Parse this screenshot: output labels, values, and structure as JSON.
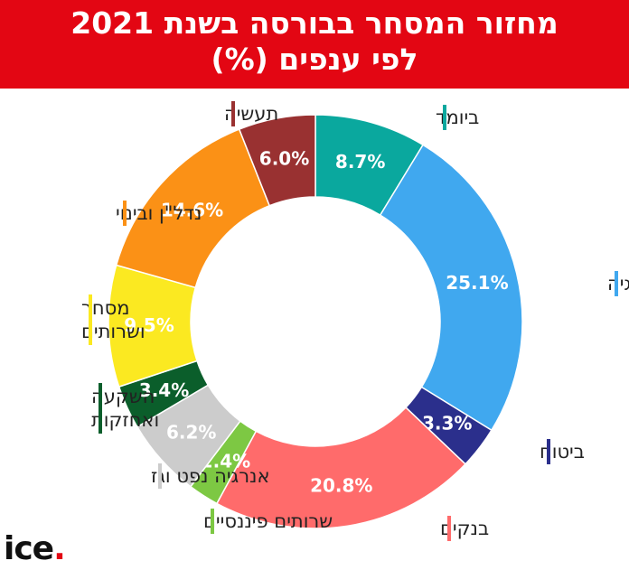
{
  "header": {
    "title_line1": "מחזור המסחר בבורסה בשנת 2021",
    "title_line2": "לפי ענפים (%)"
  },
  "logo": {
    "text": "ice",
    "dot": "."
  },
  "colors": {
    "header_bg": "#e30613"
  },
  "chart_data": {
    "type": "pie",
    "variant": "donut",
    "title": "מחזור המסחר בבורסה בשנת 2021 לפי ענפים (%)",
    "unit": "%",
    "slices": [
      {
        "label": "ביומד",
        "value": 8.7,
        "value_label": "8.7%",
        "color": "#0aa89e"
      },
      {
        "label": "טכנולוגיה",
        "value": 25.1,
        "value_label": "25.1%",
        "color": "#40a8ef"
      },
      {
        "label": "ביטוח",
        "value": 3.3,
        "value_label": "3.3%",
        "color": "#2b2f8c"
      },
      {
        "label": "בנקים",
        "value": 20.8,
        "value_label": "20.8%",
        "color": "#ff6b6b"
      },
      {
        "label": "שרותים פיננסיים",
        "value": 2.4,
        "value_label": "2.4%",
        "color": "#7dc843"
      },
      {
        "label": "אנרגיה נפט וגז",
        "value": 6.2,
        "value_label": "6.2%",
        "color": "#cccccc"
      },
      {
        "label": "השקעה ואחזקות",
        "value": 3.4,
        "value_label": "3.4%",
        "color": "#0b5e2b"
      },
      {
        "label": "מסחר ושרותים",
        "value": 9.5,
        "value_label": "9.5%",
        "color": "#fbe921"
      },
      {
        "label": "נדל\"ן ובינוי",
        "value": 14.6,
        "value_label": "14.6%",
        "color": "#fb9116"
      },
      {
        "label": "תעשיה",
        "value": 6.0,
        "value_label": "6.0%",
        "color": "#993131"
      }
    ]
  }
}
